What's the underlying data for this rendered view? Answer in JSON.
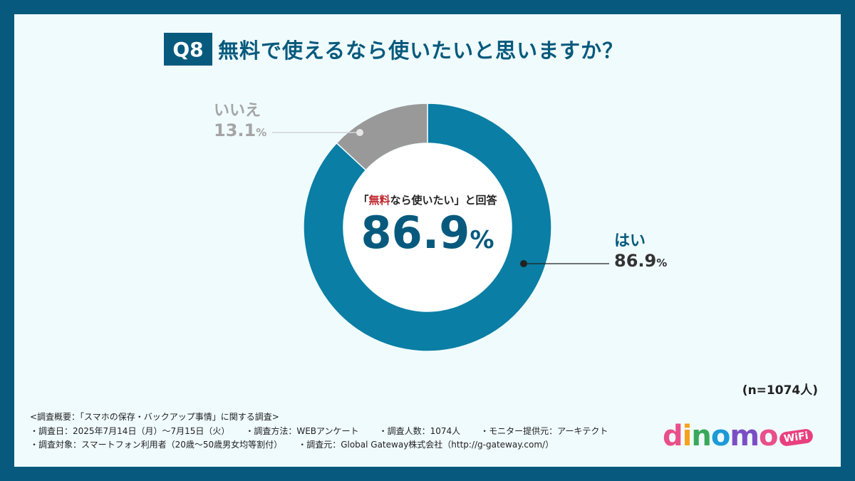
{
  "question": {
    "badge": "Q8",
    "text": "無料で使えるなら使いたいと思いますか？"
  },
  "chart_data": {
    "type": "pie",
    "donut": true,
    "title": "無料で使えるなら使いたいと思いますか？",
    "slices": [
      {
        "name": "はい",
        "value": 86.9,
        "color": "#0a7ea4"
      },
      {
        "name": "いいえ",
        "value": 13.1,
        "color": "#999999"
      }
    ],
    "center_label_prefix": "「",
    "center_label_highlight": "無料",
    "center_label_rest": "なら使いたい」と回答",
    "center_value": "86.9",
    "center_unit": "%",
    "labels": {
      "yes_name": "はい",
      "yes_value": "86.9",
      "yes_unit": "%",
      "no_name": "いいえ",
      "no_value": "13.1",
      "no_unit": "%"
    }
  },
  "sample_size": "(n=1074人)",
  "notes": {
    "heading": "<調査概要：「スマホの保存・バックアップ事情」に関する調査>",
    "line1_a": "・調査日：2025年7月14日（月）〜7月15日（火）",
    "line1_b": "・調査方法：WEBアンケート",
    "line1_c": "・調査人数：1074人",
    "line1_d": "・モニター提供元：アーキテクト",
    "line2_a": "・調査対象：スマートフォン利用者（20歳〜50歳男女均等割付）",
    "line2_b": "・調査元：Global Gateway株式会社（http://g-gateway.com/）"
  },
  "logo": {
    "letters": [
      "d",
      "i",
      "n",
      "o",
      "m",
      "o"
    ],
    "colors": [
      "#e94f8a",
      "#f6a21c",
      "#3aa85a",
      "#1b9ad6",
      "#7b4fc4",
      "#e94f8a"
    ],
    "badge": "WiFi"
  }
}
